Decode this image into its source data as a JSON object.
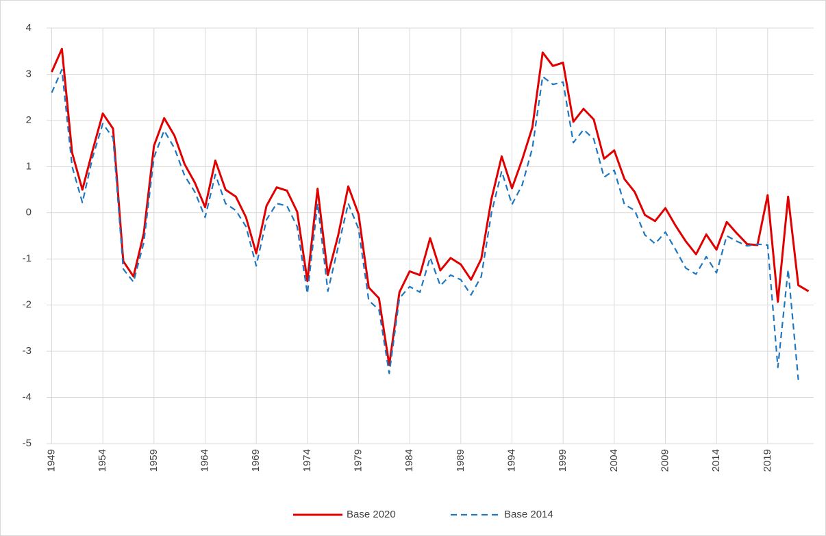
{
  "chart_data": {
    "type": "line",
    "x": [
      1949,
      1950,
      1951,
      1952,
      1953,
      1954,
      1955,
      1956,
      1957,
      1958,
      1959,
      1960,
      1961,
      1962,
      1963,
      1964,
      1965,
      1966,
      1967,
      1968,
      1969,
      1970,
      1971,
      1972,
      1973,
      1974,
      1975,
      1976,
      1977,
      1978,
      1979,
      1980,
      1981,
      1982,
      1983,
      1984,
      1985,
      1986,
      1987,
      1988,
      1989,
      1990,
      1991,
      1992,
      1993,
      1994,
      1995,
      1996,
      1997,
      1998,
      1999,
      2000,
      2001,
      2002,
      2003,
      2004,
      2005,
      2006,
      2007,
      2008,
      2009,
      2010,
      2011,
      2012,
      2013,
      2014,
      2015,
      2016,
      2017,
      2018,
      2019,
      2020,
      2021,
      2022,
      2023
    ],
    "series": [
      {
        "name": "Base 2020",
        "color": "#e00000",
        "dash": false,
        "values": [
          3.05,
          3.55,
          1.3,
          0.5,
          1.35,
          2.15,
          1.82,
          -1.05,
          -1.38,
          -0.45,
          1.45,
          2.05,
          1.67,
          1.05,
          0.65,
          0.12,
          1.13,
          0.5,
          0.35,
          -0.1,
          -0.88,
          0.15,
          0.55,
          0.48,
          0.02,
          -1.48,
          0.52,
          -1.35,
          -0.5,
          0.57,
          -0.03,
          -1.62,
          -1.85,
          -3.3,
          -1.72,
          -1.27,
          -1.35,
          -0.55,
          -1.25,
          -0.98,
          -1.12,
          -1.45,
          -1.0,
          0.3,
          1.22,
          0.53,
          1.15,
          1.85,
          3.47,
          3.18,
          3.25,
          1.97,
          2.25,
          2.02,
          1.17,
          1.35,
          0.73,
          0.45,
          -0.05,
          -0.18,
          0.1,
          -0.28,
          -0.62,
          -0.9,
          -0.47,
          -0.8,
          -0.2,
          -0.45,
          -0.68,
          -0.7,
          0.38,
          -1.93,
          0.35,
          -1.57,
          -1.7
        ]
      },
      {
        "name": "Base 2014",
        "color": "#1f77c0",
        "dash": true,
        "values": [
          2.6,
          3.1,
          1.0,
          0.22,
          1.2,
          1.93,
          1.62,
          -1.22,
          -1.5,
          -0.65,
          1.2,
          1.78,
          1.4,
          0.8,
          0.45,
          -0.1,
          0.83,
          0.2,
          0.05,
          -0.3,
          -1.15,
          -0.15,
          0.2,
          0.15,
          -0.3,
          -1.75,
          0.2,
          -1.7,
          -0.75,
          0.2,
          -0.35,
          -1.9,
          -2.1,
          -3.48,
          -1.85,
          -1.6,
          -1.72,
          -0.97,
          -1.58,
          -1.35,
          -1.45,
          -1.78,
          -1.38,
          0.0,
          0.9,
          0.18,
          0.6,
          1.4,
          2.95,
          2.78,
          2.83,
          1.52,
          1.8,
          1.6,
          0.77,
          0.92,
          0.18,
          0.05,
          -0.48,
          -0.67,
          -0.42,
          -0.8,
          -1.2,
          -1.33,
          -0.95,
          -1.3,
          -0.5,
          -0.62,
          -0.72,
          -0.68,
          -0.7,
          -3.35,
          -1.23,
          -3.62,
          null
        ]
      }
    ],
    "xlim": [
      1948.5,
      2023.5
    ],
    "xticks": [
      1949,
      1954,
      1959,
      1964,
      1969,
      1974,
      1979,
      1984,
      1989,
      1994,
      1999,
      2004,
      2009,
      2014,
      2019
    ],
    "ylim": [
      -5,
      4
    ],
    "yticks": [
      -5,
      -4,
      -3,
      -2,
      -1,
      0,
      1,
      2,
      3,
      4
    ],
    "grid": true,
    "legend": "bottom"
  }
}
